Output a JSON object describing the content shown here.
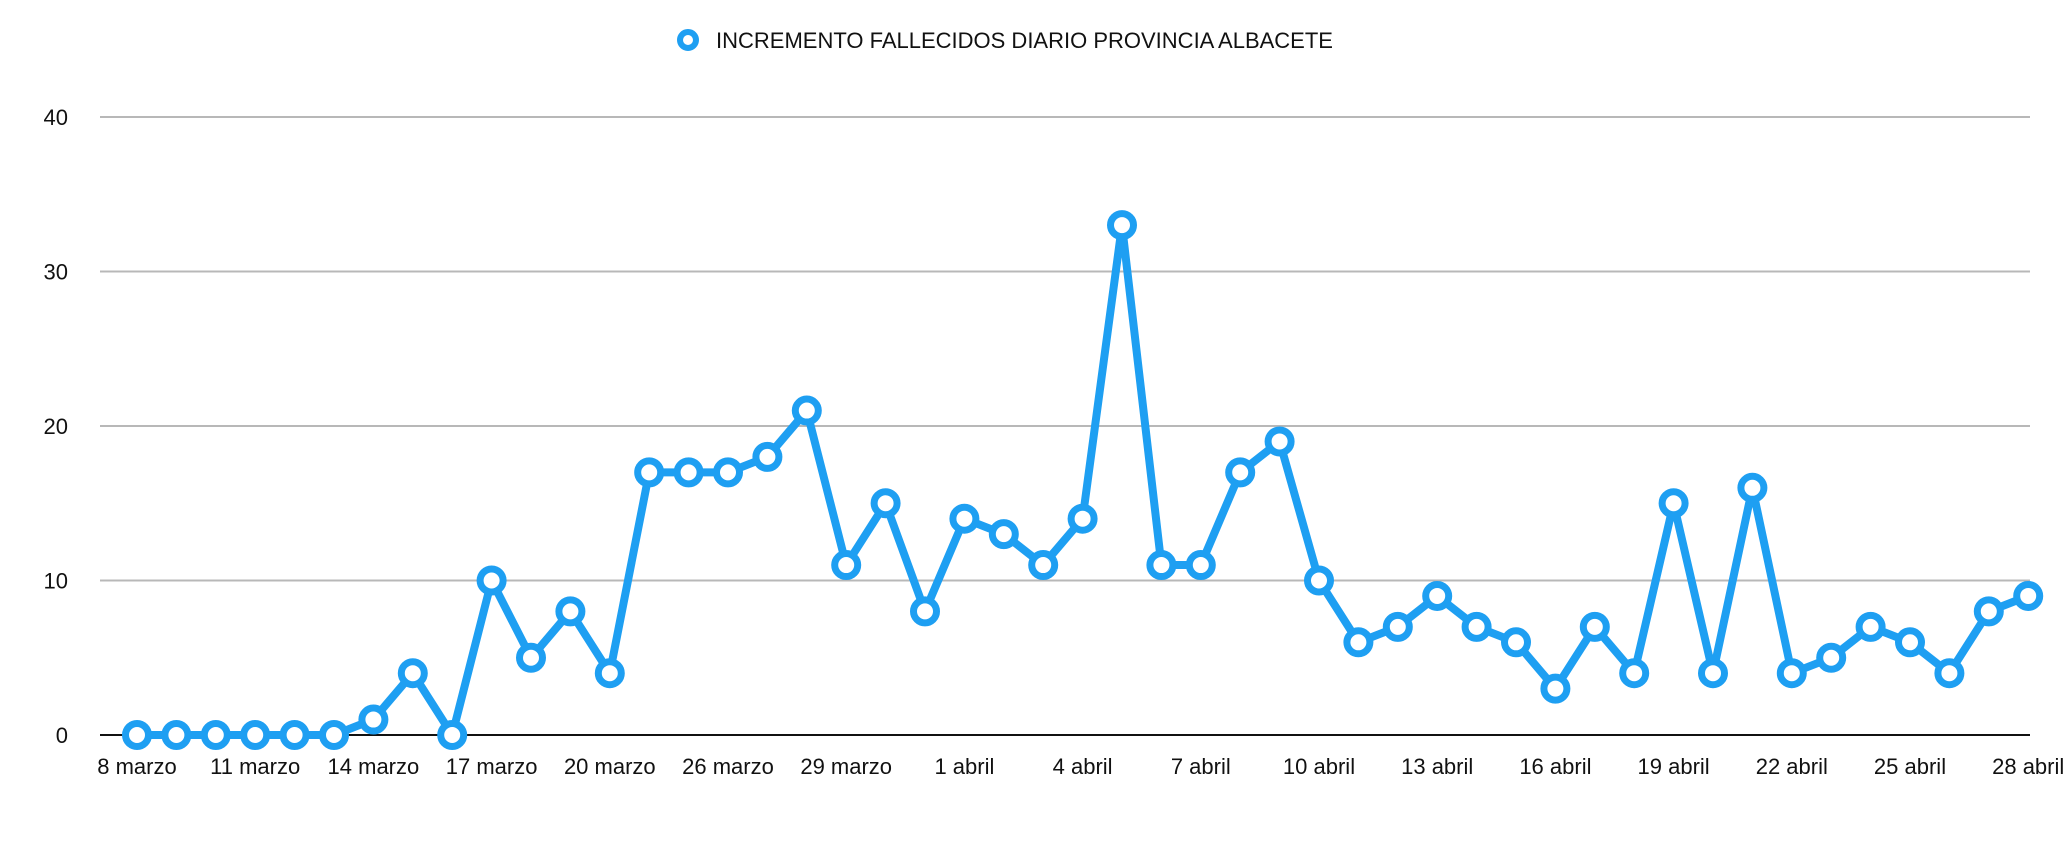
{
  "chart_data": {
    "type": "line",
    "title": "",
    "xlabel": "",
    "ylabel": "",
    "ylim": [
      0,
      40
    ],
    "yticks": [
      0,
      10,
      20,
      30,
      40
    ],
    "grid": true,
    "legend_position": "top-center",
    "x_tick_labels": [
      "8 marzo",
      "11 marzo",
      "14 marzo",
      "17 marzo",
      "20 marzo",
      "26 marzo",
      "29 marzo",
      "1 abril",
      "4 abril",
      "7 abril",
      "10 abril",
      "13 abril",
      "16 abril",
      "19 abril",
      "22 abril",
      "25 abril",
      "28 abril"
    ],
    "series": [
      {
        "name": "INCREMENTO FALLECIDOS DIARIO PROVINCIA ALBACETE",
        "color": "#1e9ff2",
        "values": [
          0,
          0,
          0,
          0,
          0,
          0,
          1,
          4,
          0,
          10,
          5,
          8,
          4,
          17,
          17,
          17,
          18,
          21,
          11,
          15,
          8,
          14,
          13,
          11,
          14,
          33,
          11,
          11,
          17,
          19,
          10,
          6,
          7,
          9,
          7,
          6,
          3,
          7,
          4,
          15,
          4,
          16,
          4,
          5,
          7,
          6,
          4,
          8,
          9
        ]
      }
    ]
  }
}
